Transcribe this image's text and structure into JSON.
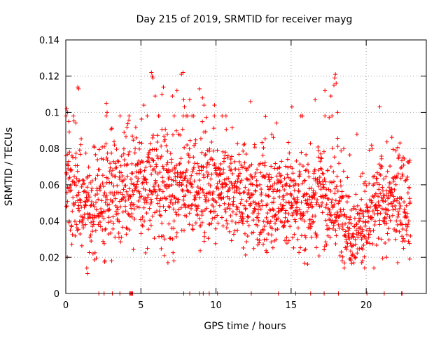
{
  "chart_data": {
    "type": "scatter",
    "title": "Day 215 of 2019, SRMTID for receiver mayg",
    "xlabel": "GPS time / hours",
    "ylabel": "SRMTID / TECUs",
    "xlim": [
      0,
      24
    ],
    "ylim": [
      0,
      0.14
    ],
    "grid": true,
    "marker": "+",
    "color": "#ff0000",
    "x_ticks": [
      0,
      5,
      10,
      15,
      20
    ],
    "x_tick_labels": [
      "0",
      "5",
      "10",
      "15",
      "20"
    ],
    "y_ticks": [
      0,
      0.02,
      0.04,
      0.06,
      0.08,
      0.1,
      0.12,
      0.14
    ],
    "y_tick_labels": [
      "0",
      "0.02",
      "0.04",
      "0.06",
      "0.08",
      "0.1",
      "0.12",
      "0.14"
    ],
    "zero_value_times": [
      2.2,
      2.55,
      3.1,
      3.6,
      4.25,
      4.3,
      4.35,
      4.4,
      4.45,
      7.85,
      8.25,
      8.9,
      9.15,
      9.55,
      10.1,
      12.35,
      14.15,
      15.3,
      16.3,
      17.2,
      18.15,
      20.05,
      21.2,
      22.35,
      22.4
    ]
  }
}
